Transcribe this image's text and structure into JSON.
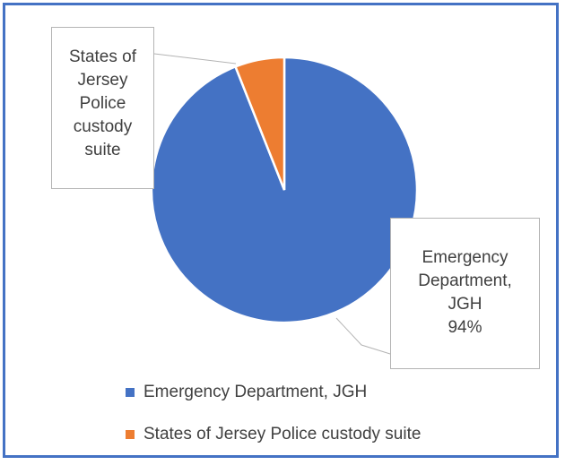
{
  "chart_data": {
    "type": "pie",
    "title": "",
    "categories": [
      "Emergency Department, JGH",
      "States of Jersey Police custody suite"
    ],
    "values": [
      94,
      6
    ],
    "unit": "%",
    "colors": [
      "#4472C4",
      "#ED7D31"
    ],
    "data_labels": {
      "emergency": [
        "Emergency",
        "Department,",
        "JGH",
        "94%"
      ],
      "police": [
        "States of",
        "Jersey",
        "Police",
        "custody",
        "suite"
      ]
    },
    "legend": {
      "position": "bottom",
      "items": [
        "Emergency Department, JGH",
        "States of Jersey Police custody suite"
      ]
    }
  }
}
